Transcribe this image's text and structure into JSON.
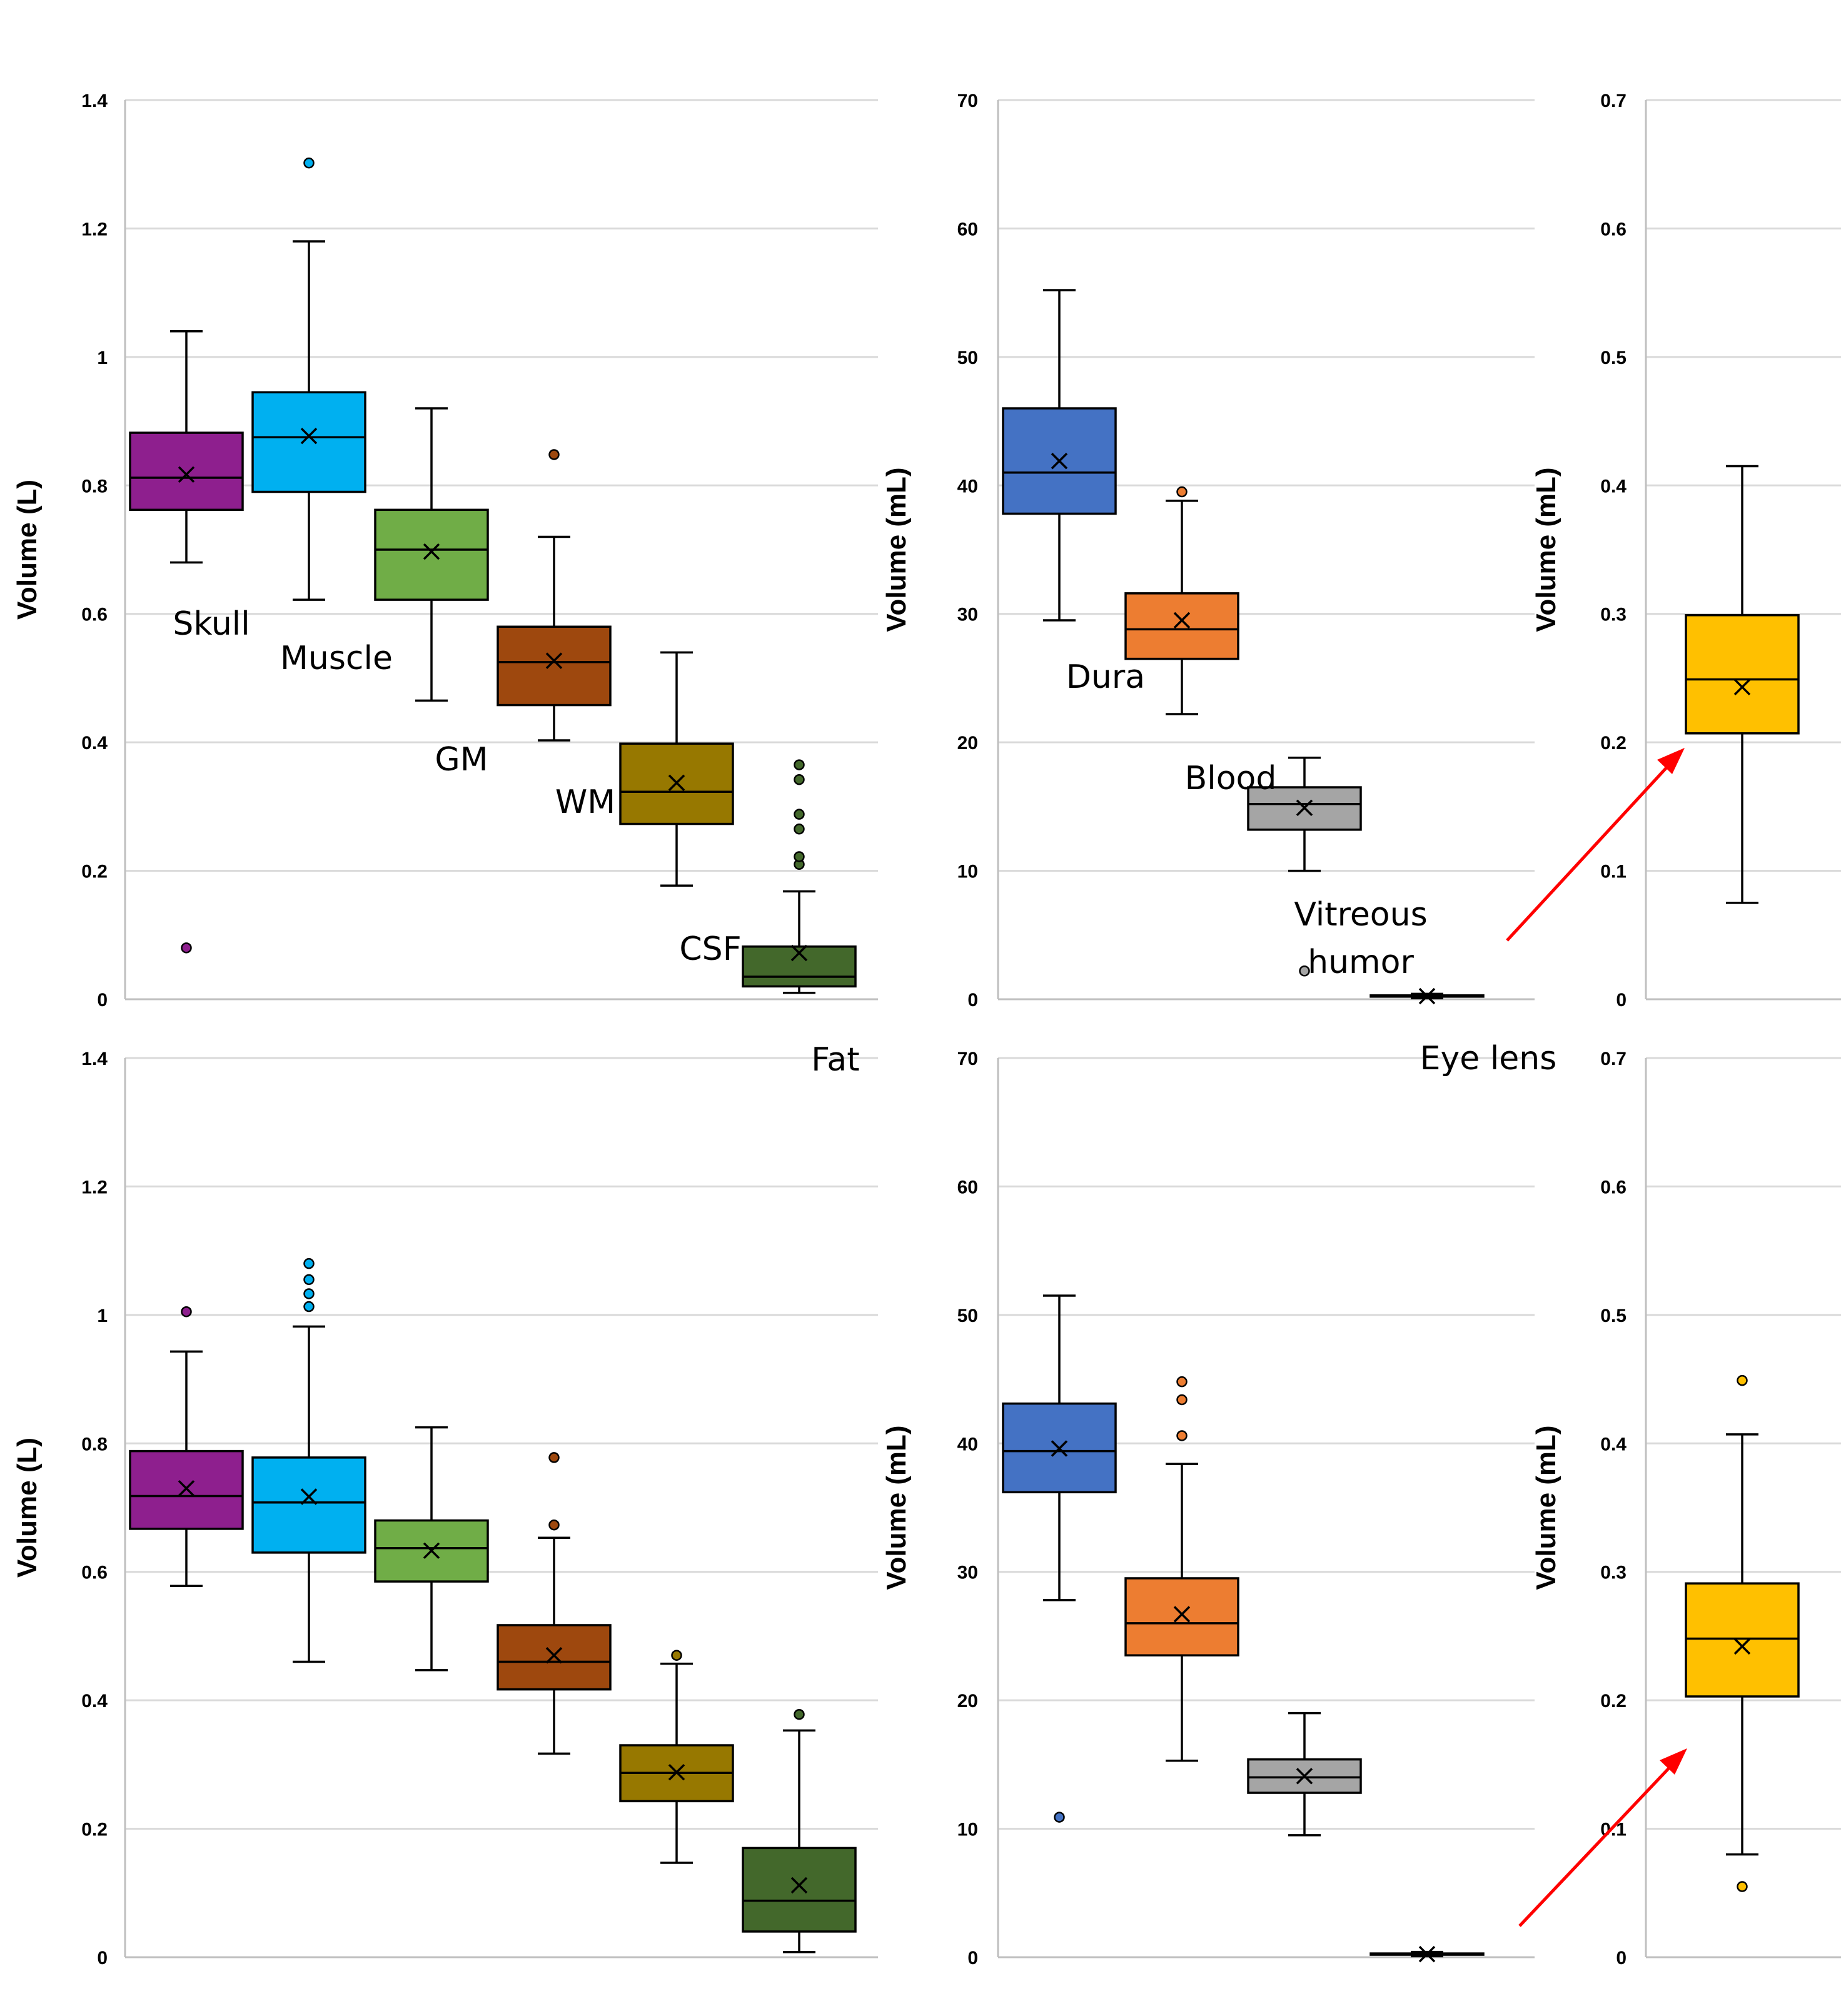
{
  "chart_data": [
    {
      "id": "top-left",
      "type": "box",
      "ylabel": "Volume (L)",
      "ylim": [
        0,
        1.4
      ],
      "yticks": [
        "0",
        "0.2",
        "0.4",
        "0.6",
        "0.8",
        "1",
        "1.2",
        "1.4"
      ],
      "boxes": [
        {
          "name": "Skull",
          "color": "#8e1f8e",
          "min": 0.68,
          "q1": 0.762,
          "median": 0.812,
          "q3": 0.882,
          "max": 1.04,
          "mean": 0.817,
          "outliers": [
            0.08
          ]
        },
        {
          "name": "Muscle",
          "color": "#00b0f0",
          "min": 0.622,
          "q1": 0.79,
          "median": 0.875,
          "q3": 0.945,
          "max": 1.18,
          "mean": 0.877,
          "outliers": [
            1.302
          ]
        },
        {
          "name": "GM",
          "color": "#70ad47",
          "min": 0.465,
          "q1": 0.622,
          "median": 0.7,
          "q3": 0.762,
          "max": 0.92,
          "mean": 0.697,
          "outliers": []
        },
        {
          "name": "WM",
          "color": "#9e480e",
          "min": 0.403,
          "q1": 0.458,
          "median": 0.525,
          "q3": 0.58,
          "max": 0.72,
          "mean": 0.527,
          "outliers": [
            0.848
          ]
        },
        {
          "name": "CSF",
          "color": "#977800",
          "min": 0.177,
          "q1": 0.273,
          "median": 0.323,
          "q3": 0.398,
          "max": 0.54,
          "mean": 0.337,
          "outliers": []
        },
        {
          "name": "Fat",
          "color": "#43682b",
          "min": 0.01,
          "q1": 0.02,
          "median": 0.035,
          "q3": 0.082,
          "max": 0.168,
          "mean": 0.072,
          "outliers": [
            0.21,
            0.222,
            0.265,
            0.288,
            0.342,
            0.365
          ]
        }
      ]
    },
    {
      "id": "top-middle",
      "type": "box",
      "ylabel": "Volume (mL)",
      "ylim": [
        0,
        70
      ],
      "yticks": [
        "0",
        "10",
        "20",
        "30",
        "40",
        "50",
        "60",
        "70"
      ],
      "boxes": [
        {
          "name": "Dura",
          "color": "#4472c4",
          "min": 29.5,
          "q1": 37.8,
          "median": 41.0,
          "q3": 46.0,
          "max": 55.2,
          "mean": 41.9,
          "outliers": []
        },
        {
          "name": "Blood",
          "color": "#ed7d31",
          "min": 22.2,
          "q1": 26.5,
          "median": 28.8,
          "q3": 31.6,
          "max": 38.8,
          "mean": 29.5,
          "outliers": [
            39.5
          ]
        },
        {
          "name": "Vitreous humor",
          "color": "#a5a5a5",
          "min": 10.0,
          "q1": 13.2,
          "median": 15.2,
          "q3": 16.5,
          "max": 18.8,
          "mean": 14.9,
          "outliers": [
            2.2
          ]
        },
        {
          "name": "Eye lens",
          "color": "#ffc000",
          "min": 0.08,
          "q1": 0.21,
          "median": 0.25,
          "q3": 0.3,
          "max": 0.42,
          "mean": 0.24,
          "outliers": []
        }
      ]
    },
    {
      "id": "top-right",
      "type": "box",
      "ylabel": "Volume (mL)",
      "ylim": [
        0,
        0.7
      ],
      "yticks": [
        "0",
        "0.1",
        "0.2",
        "0.3",
        "0.4",
        "0.5",
        "0.6",
        "0.7"
      ],
      "boxes": [
        {
          "name": "Eye lens",
          "color": "#ffc000",
          "min": 0.075,
          "q1": 0.207,
          "median": 0.249,
          "q3": 0.299,
          "max": 0.415,
          "mean": 0.243,
          "outliers": []
        }
      ]
    },
    {
      "id": "bottom-left",
      "type": "box",
      "ylabel": "Volume (L)",
      "ylim": [
        0,
        1.4
      ],
      "yticks": [
        "0",
        "0.2",
        "0.4",
        "0.6",
        "0.8",
        "1",
        "1.2",
        "1.4"
      ],
      "boxes": [
        {
          "name": "Skull",
          "color": "#8e1f8e",
          "min": 0.578,
          "q1": 0.667,
          "median": 0.718,
          "q3": 0.788,
          "max": 0.943,
          "mean": 0.73,
          "outliers": [
            1.005
          ]
        },
        {
          "name": "Muscle",
          "color": "#00b0f0",
          "min": 0.46,
          "q1": 0.63,
          "median": 0.708,
          "q3": 0.778,
          "max": 0.982,
          "mean": 0.717,
          "outliers": [
            1.013,
            1.033,
            1.055,
            1.08
          ]
        },
        {
          "name": "GM",
          "color": "#70ad47",
          "min": 0.447,
          "q1": 0.585,
          "median": 0.637,
          "q3": 0.68,
          "max": 0.825,
          "mean": 0.633,
          "outliers": []
        },
        {
          "name": "WM",
          "color": "#9e480e",
          "min": 0.317,
          "q1": 0.417,
          "median": 0.46,
          "q3": 0.517,
          "max": 0.653,
          "mean": 0.47,
          "outliers": [
            0.673,
            0.778
          ]
        },
        {
          "name": "CSF",
          "color": "#977800",
          "min": 0.147,
          "q1": 0.243,
          "median": 0.287,
          "q3": 0.33,
          "max": 0.457,
          "mean": 0.288,
          "outliers": [
            0.47
          ]
        },
        {
          "name": "Fat",
          "color": "#43682b",
          "min": 0.008,
          "q1": 0.04,
          "median": 0.088,
          "q3": 0.17,
          "max": 0.353,
          "mean": 0.112,
          "outliers": [
            0.378
          ]
        }
      ]
    },
    {
      "id": "bottom-middle",
      "type": "box",
      "ylabel": "Volume (mL)",
      "ylim": [
        0,
        70
      ],
      "yticks": [
        "0",
        "10",
        "20",
        "30",
        "40",
        "50",
        "60",
        "70"
      ],
      "boxes": [
        {
          "name": "Dura",
          "color": "#4472c4",
          "min": 27.8,
          "q1": 36.2,
          "median": 39.4,
          "q3": 43.1,
          "max": 51.5,
          "mean": 39.6,
          "outliers": [
            10.9
          ]
        },
        {
          "name": "Blood",
          "color": "#ed7d31",
          "min": 15.3,
          "q1": 23.5,
          "median": 26.0,
          "q3": 29.5,
          "max": 38.4,
          "mean": 26.7,
          "outliers": [
            40.6,
            43.4,
            44.8
          ]
        },
        {
          "name": "Vitreous humor",
          "color": "#a5a5a5",
          "min": 9.5,
          "q1": 12.8,
          "median": 14.0,
          "q3": 15.4,
          "max": 19.0,
          "mean": 14.1,
          "outliers": []
        },
        {
          "name": "Eye lens",
          "color": "#ffc000",
          "min": 0.08,
          "q1": 0.2,
          "median": 0.25,
          "q3": 0.29,
          "max": 0.41,
          "mean": 0.24,
          "outliers": []
        }
      ]
    },
    {
      "id": "bottom-right",
      "type": "box",
      "ylabel": "Volume (mL)",
      "ylim": [
        0,
        0.7
      ],
      "yticks": [
        "0",
        "0.1",
        "0.2",
        "0.3",
        "0.4",
        "0.5",
        "0.6",
        "0.7"
      ],
      "boxes": [
        {
          "name": "Eye lens",
          "color": "#ffc000",
          "min": 0.08,
          "q1": 0.203,
          "median": 0.248,
          "q3": 0.291,
          "max": 0.407,
          "mean": 0.242,
          "outliers": [
            0.055,
            0.449
          ]
        }
      ]
    }
  ],
  "category_labels": {
    "skull": "Skull",
    "muscle": "Muscle",
    "gm": "GM",
    "wm": "WM",
    "csf": "CSF",
    "fat": "Fat",
    "dura": "Dura",
    "blood": "Blood",
    "vitreous_line1": "Vitreous",
    "vitreous_line2": "humor",
    "eye_lens": "Eye lens"
  },
  "colors": {
    "grid": "#d9d9d9",
    "axis": "#bfbfbf",
    "arrow": "#ff0000"
  }
}
